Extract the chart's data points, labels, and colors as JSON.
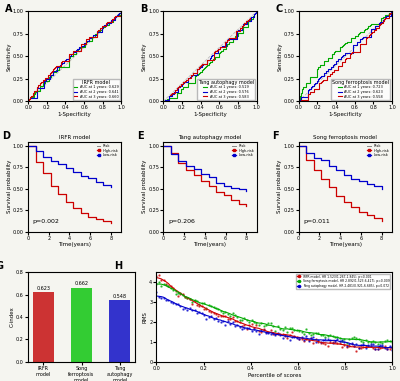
{
  "panel_labels": [
    "A",
    "B",
    "C",
    "D",
    "E",
    "F",
    "G",
    "H"
  ],
  "roc_A": {
    "title": "IRFR model",
    "legend": [
      "AUC at 1 years: 0.629",
      "AUC at 2 years: 0.641",
      "AUC at 3 years: 0.660"
    ],
    "colors": [
      "#00aa00",
      "#0000cc",
      "#cc0000"
    ]
  },
  "roc_B": {
    "title": "Tang autophagy model",
    "legend": [
      "AUC at 1 years: 0.519",
      "AUC at 2 years: 0.576",
      "AUC at 3 years: 0.583"
    ],
    "colors": [
      "#00aa00",
      "#0000cc",
      "#cc0000"
    ]
  },
  "roc_C": {
    "title": "Song ferroptosis model",
    "legend": [
      "AUC at 1 years: 0.723",
      "AUC at 2 years: 0.623",
      "AUC at 3 years: 0.558"
    ],
    "colors": [
      "#00aa00",
      "#0000cc",
      "#cc0000"
    ]
  },
  "km_D": {
    "title": "IRFR model",
    "pval": "p=0.002",
    "colors": [
      "#cc0000",
      "#0000cc"
    ]
  },
  "km_E": {
    "title": "Tang autophagy model",
    "pval": "p=0.206",
    "colors": [
      "#cc0000",
      "#0000cc"
    ]
  },
  "km_F": {
    "title": "Song ferroptosis model",
    "pval": "p=0.011",
    "colors": [
      "#cc0000",
      "#0000cc"
    ]
  },
  "bar_G": {
    "title": "",
    "categories": [
      "IRFR model",
      "Song ferroptosis model",
      "Tang autophagy model"
    ],
    "values": [
      0.623,
      0.662,
      0.548
    ],
    "colors": [
      "#cc3333",
      "#33cc33",
      "#3333cc"
    ],
    "ylabel": "C-index",
    "ylim": [
      0,
      0.8
    ]
  },
  "scatter_H": {
    "legend": [
      "IRFR model, HR 1.523(1.267-1.845), p<0.001",
      "Song ferroptosis model, HR 2.892(1.523-6.417), p=0.009",
      "Tang autophagy model, HR 2.481(0.921-6.685), p=0.072"
    ],
    "colors": [
      "#cc0000",
      "#00aa00",
      "#0000cc"
    ],
    "ylabel": "RMS",
    "xlabel": "Percentile of scores"
  },
  "bg_color": "#f5f5f0"
}
